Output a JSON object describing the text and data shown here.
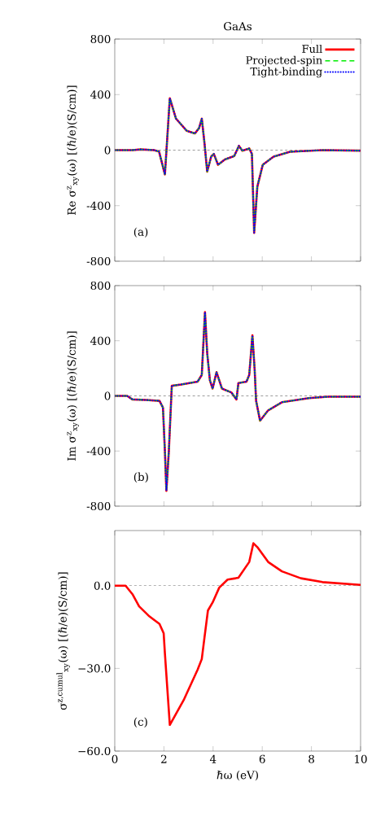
{
  "chart_data": [
    {
      "type": "line",
      "title": "GaAs",
      "ylabel": "Re σ$^{z}$$_{xy}$(ω) [(ℏ/e)(S/cm)]",
      "xlim": [
        0,
        10
      ],
      "xticks": [
        0,
        2,
        4,
        6,
        8,
        10
      ],
      "ylim": [
        -800,
        800
      ],
      "yticks": [
        -800,
        -400,
        0,
        400,
        800
      ],
      "tick_labels": "y",
      "legend": "top right",
      "annotations": [
        "(a)"
      ],
      "x": [
        0,
        0.72,
        1.05,
        1.6,
        1.8,
        2.04,
        2.24,
        2.49,
        2.93,
        3.26,
        3.43,
        3.54,
        3.65,
        3.76,
        3.92,
        4.03,
        4.2,
        4.48,
        4.86,
        5.05,
        5.19,
        5.47,
        5.58,
        5.67,
        5.8,
        6.02,
        6.46,
        7.13,
        8.45,
        10
      ],
      "ref_lines": [
        {
          "axis": "y",
          "value": 0,
          "color": "#000000",
          "line_style": "dashed"
        }
      ],
      "series": [
        {
          "name": "Full",
          "color": "#ff0000",
          "line_style": "solid",
          "values": [
            0,
            0,
            5,
            0,
            -10,
            -175,
            374,
            227,
            139,
            120,
            159,
            227,
            51,
            -155,
            -47,
            -27,
            -106,
            -67,
            -43,
            31,
            -4,
            12,
            -27,
            -596,
            -263,
            -106,
            -47,
            -12,
            0,
            -4
          ]
        },
        {
          "name": "Projected-spin",
          "color": "#00ee00",
          "line_style": "dashed",
          "values": [
            0,
            0,
            5,
            0,
            -10,
            -175,
            374,
            227,
            139,
            120,
            159,
            227,
            51,
            -155,
            -47,
            -27,
            -106,
            -67,
            -43,
            31,
            -4,
            12,
            -27,
            -596,
            -263,
            -106,
            -47,
            -12,
            0,
            -4
          ]
        },
        {
          "name": "Tight-binding",
          "color": "#0000ff",
          "line_style": "dotted",
          "values": [
            0,
            0,
            5,
            0,
            -10,
            -175,
            374,
            227,
            139,
            120,
            159,
            227,
            51,
            -155,
            -47,
            -27,
            -106,
            -67,
            -43,
            31,
            -4,
            12,
            -27,
            -596,
            -263,
            -106,
            -47,
            -12,
            0,
            -4
          ]
        }
      ]
    },
    {
      "type": "line",
      "ylabel": "Im σ$^{z}$$_{xy}$(ω) [(ℏ/e)(S/cm)]",
      "xlim": [
        0,
        10
      ],
      "xticks": [
        0,
        2,
        4,
        6,
        8,
        10
      ],
      "ylim": [
        -800,
        800
      ],
      "yticks": [
        -800,
        -400,
        0,
        400,
        800
      ],
      "tick_labels": "y",
      "annotations": [
        "(b)"
      ],
      "x": [
        0,
        0.5,
        0.72,
        1.27,
        1.82,
        1.96,
        2.04,
        2.1,
        2.2,
        2.32,
        2.71,
        3.37,
        3.54,
        3.67,
        3.76,
        3.87,
        3.98,
        4.14,
        4.36,
        4.75,
        4.95,
        5.03,
        5.36,
        5.47,
        5.6,
        5.69,
        5.75,
        5.91,
        6.24,
        6.8,
        7.9,
        8.67,
        10
      ],
      "ref_lines": [
        {
          "axis": "y",
          "value": 0,
          "color": "#000000",
          "line_style": "dashed"
        }
      ],
      "series": [
        {
          "color": "#ff0000",
          "line_style": "solid",
          "values": [
            0,
            0,
            -26,
            -30,
            -36,
            -85,
            -402,
            -689,
            -402,
            73,
            83,
            103,
            152,
            608,
            311,
            113,
            53,
            172,
            53,
            24,
            -26,
            93,
            103,
            152,
            440,
            192,
            -36,
            -180,
            -105,
            -46,
            -16,
            -6,
            -6
          ]
        },
        {
          "color": "#00ee00",
          "line_style": "dashed",
          "values": [
            0,
            0,
            -26,
            -30,
            -36,
            -85,
            -402,
            -689,
            -402,
            73,
            83,
            103,
            152,
            608,
            311,
            113,
            53,
            172,
            53,
            24,
            -26,
            93,
            103,
            152,
            440,
            192,
            -36,
            -180,
            -105,
            -46,
            -16,
            -6,
            -6
          ]
        },
        {
          "color": "#0000ff",
          "line_style": "dotted",
          "values": [
            0,
            0,
            -26,
            -30,
            -36,
            -85,
            -402,
            -689,
            -402,
            73,
            83,
            103,
            152,
            608,
            311,
            113,
            53,
            172,
            53,
            24,
            -26,
            93,
            103,
            152,
            440,
            192,
            -36,
            -180,
            -105,
            -46,
            -16,
            -6,
            -6
          ]
        }
      ]
    },
    {
      "type": "line",
      "xlabel": "ℏω (eV)",
      "ylabel": "σ$^{z,cumul}$$_{xy}$(ω) [(ℏ/e)(S/cm)]",
      "xlim": [
        0,
        10
      ],
      "xticks": [
        0,
        2,
        4,
        6,
        8,
        10
      ],
      "ylim": [
        -60,
        20
      ],
      "yticks": [
        {
          "value": -60,
          "label": "−60.0"
        },
        {
          "value": -30,
          "label": "−30.0"
        },
        {
          "value": 0,
          "label": "0.0"
        }
      ],
      "annotations": [
        "(c)"
      ],
      "x": [
        0,
        0.44,
        0.72,
        0.99,
        1.38,
        1.82,
        1.99,
        2.04,
        2.24,
        2.82,
        3.37,
        3.54,
        3.65,
        3.79,
        3.98,
        4.25,
        4.59,
        4.92,
        5.03,
        5.47,
        5.64,
        5.8,
        6.24,
        6.8,
        7.57,
        8.45,
        10
      ],
      "ref_lines": [
        {
          "axis": "y",
          "value": 0,
          "color": "#000000",
          "line_style": "dashed"
        }
      ],
      "series": [
        {
          "color": "#ff0000",
          "line_style": "solid",
          "values": [
            0,
            0,
            -3.1,
            -7.5,
            -10.9,
            -13.9,
            -17.3,
            -24.6,
            -50.5,
            -41.2,
            -30.5,
            -26.6,
            -18.8,
            -9.0,
            -6.1,
            -0.7,
            2.2,
            2.7,
            2.9,
            8.6,
            15.4,
            14.0,
            8.6,
            5.2,
            2.7,
            1.3,
            0.3
          ]
        }
      ]
    }
  ]
}
